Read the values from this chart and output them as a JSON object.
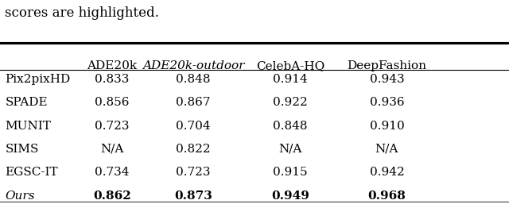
{
  "header_text": "scores are highlighted.",
  "columns": [
    "",
    "ADE20k",
    "ADE20k-outdoor",
    "CelebA-HQ",
    "DeepFashion"
  ],
  "col_italic": [
    false,
    false,
    true,
    false,
    false
  ],
  "rows": [
    [
      "Pix2pixHD",
      "0.833",
      "0.848",
      "0.914",
      "0.943"
    ],
    [
      "SPADE",
      "0.856",
      "0.867",
      "0.922",
      "0.936"
    ],
    [
      "MUNIT",
      "0.723",
      "0.704",
      "0.848",
      "0.910"
    ],
    [
      "SIMS",
      "N/A",
      "0.822",
      "N/A",
      "N/A"
    ],
    [
      "EGSC-IT",
      "0.734",
      "0.723",
      "0.915",
      "0.942"
    ],
    [
      "Ours",
      "0.862",
      "0.873",
      "0.949",
      "0.968"
    ]
  ],
  "row_italic": [
    false,
    false,
    false,
    false,
    false,
    true
  ],
  "bold_last_row_values": true,
  "background_color": "#ffffff",
  "text_color": "#000000",
  "font_size": 11,
  "header_font_size": 12
}
